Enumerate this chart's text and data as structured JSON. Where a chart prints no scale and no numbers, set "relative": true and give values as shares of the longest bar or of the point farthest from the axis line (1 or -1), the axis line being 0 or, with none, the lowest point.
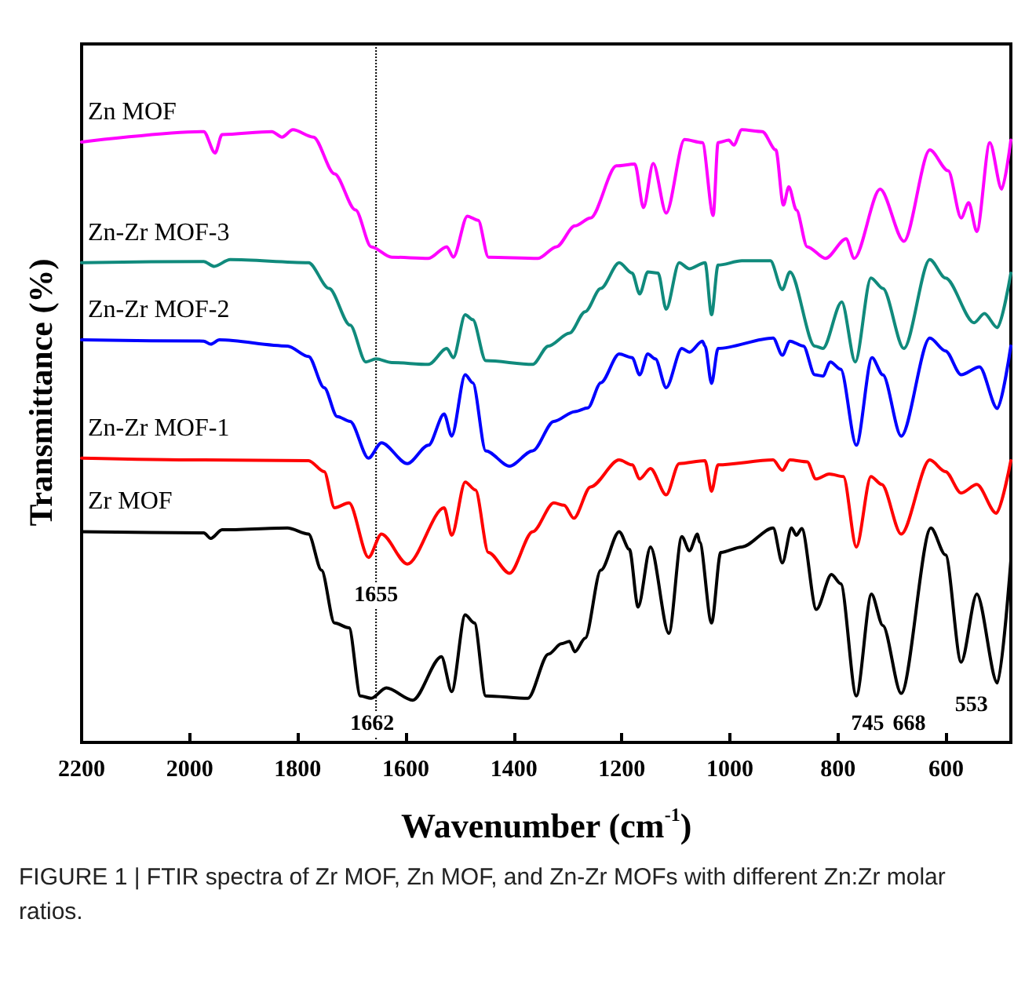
{
  "chart_data": {
    "type": "line",
    "xlabel": "Wavenumber (cm$^{-1}$)",
    "ylabel": "Transmittance (%)",
    "relative": true,
    "xlim": [
      2200,
      480
    ],
    "xticks": [
      2200,
      2000,
      1800,
      1600,
      1400,
      1200,
      1000,
      800,
      600
    ],
    "legend": false,
    "grid": false,
    "marker": "none",
    "line_style": "solid",
    "ref_lines": [
      {
        "axis": "x",
        "value": 1655,
        "line_style": "dotted",
        "color": "#000000"
      }
    ],
    "annotations": [
      {
        "text": "1655",
        "x": 1655,
        "y": 0.24
      },
      {
        "text": "1662",
        "x": 1662,
        "y": 0.03
      },
      {
        "text": "745",
        "x": 745,
        "y": 0.03
      },
      {
        "text": "668",
        "x": 668,
        "y": 0.03
      },
      {
        "text": "553",
        "x": 553,
        "y": 0.06
      },
      "FIGURE 1 | FTIR spectra of Zr MOF, Zn MOF, and Zn-Zr MOFs with different Zn:Zr molar ratios."
    ],
    "series": [
      {
        "name": "Zn MOF",
        "color": "#ff00ff",
        "x": [
          2200,
          1974,
          1953,
          1940,
          1848,
          1829,
          1809,
          1771,
          1732,
          1693,
          1664,
          1626,
          1558,
          1524,
          1512,
          1486,
          1466,
          1447,
          1355,
          1321,
          1287,
          1258,
          1210,
          1176,
          1160,
          1142,
          1118,
          1084,
          1051,
          1031,
          1022,
          1002,
          993,
          978,
          940,
          915,
          901,
          891,
          877,
          857,
          823,
          785,
          770,
          722,
          678,
          630,
          596,
          572,
          558,
          543,
          519,
          497,
          480
        ],
        "values": [
          0.98,
          0.997,
          0.962,
          0.992,
          0.997,
          0.988,
          1,
          0.988,
          0.928,
          0.869,
          0.809,
          0.792,
          0.79,
          0.809,
          0.792,
          0.859,
          0.852,
          0.792,
          0.79,
          0.809,
          0.843,
          0.856,
          0.941,
          0.944,
          0.873,
          0.945,
          0.864,
          0.984,
          0.979,
          0.86,
          0.979,
          0.983,
          0.975,
          1,
          0.997,
          0.967,
          0.877,
          0.907,
          0.869,
          0.809,
          0.79,
          0.822,
          0.79,
          0.903,
          0.818,
          0.967,
          0.933,
          0.856,
          0.881,
          0.834,
          0.979,
          0.903,
          0.983
        ]
      },
      {
        "name": "Zn-Zr MOF-3",
        "color": "#108a7c",
        "x": [
          2200,
          1974,
          1955,
          1925,
          1780,
          1742,
          1703,
          1674,
          1655,
          1626,
          1558,
          1524,
          1512,
          1490,
          1476,
          1452,
          1365,
          1336,
          1297,
          1268,
          1239,
          1205,
          1181,
          1167,
          1152,
          1133,
          1118,
          1094,
          1075,
          1046,
          1034,
          1022,
          978,
          925,
          903,
          889,
          843,
          828,
          793,
          768,
          739,
          717,
          678,
          630,
          601,
          548,
          529,
          505,
          480
        ],
        "values": [
          0.783,
          0.785,
          0.777,
          0.788,
          0.783,
          0.741,
          0.681,
          0.621,
          0.626,
          0.62,
          0.617,
          0.643,
          0.628,
          0.698,
          0.69,
          0.623,
          0.617,
          0.647,
          0.668,
          0.703,
          0.741,
          0.783,
          0.766,
          0.732,
          0.768,
          0.766,
          0.707,
          0.783,
          0.773,
          0.783,
          0.698,
          0.779,
          0.786,
          0.786,
          0.739,
          0.768,
          0.647,
          0.643,
          0.719,
          0.621,
          0.758,
          0.741,
          0.643,
          0.788,
          0.758,
          0.685,
          0.7,
          0.677,
          0.766
        ]
      },
      {
        "name": "Zn-Zr MOF-2",
        "color": "#0000ff",
        "x": [
          2200,
          1974,
          1961,
          1945,
          1819,
          1780,
          1751,
          1727,
          1703,
          1669,
          1645,
          1597,
          1558,
          1529,
          1515,
          1490,
          1476,
          1452,
          1408,
          1365,
          1326,
          1287,
          1263,
          1239,
          1205,
          1181,
          1167,
          1152,
          1138,
          1118,
          1089,
          1075,
          1051,
          1046,
          1034,
          1022,
          920,
          903,
          889,
          864,
          843,
          828,
          814,
          795,
          766,
          737,
          717,
          683,
          630,
          601,
          572,
          538,
          505,
          480
        ],
        "values": [
          0.657,
          0.655,
          0.65,
          0.657,
          0.647,
          0.63,
          0.579,
          0.532,
          0.524,
          0.464,
          0.489,
          0.455,
          0.485,
          0.536,
          0.5,
          0.6,
          0.587,
          0.476,
          0.451,
          0.476,
          0.524,
          0.54,
          0.546,
          0.587,
          0.634,
          0.628,
          0.6,
          0.634,
          0.626,
          0.579,
          0.643,
          0.637,
          0.655,
          0.647,
          0.586,
          0.643,
          0.66,
          0.632,
          0.655,
          0.647,
          0.6,
          0.598,
          0.621,
          0.609,
          0.485,
          0.628,
          0.6,
          0.5,
          0.66,
          0.639,
          0.6,
          0.613,
          0.545,
          0.647
        ]
      },
      {
        "name": "Zn-Zr MOF-1",
        "color": "#ff0000",
        "x": [
          2200,
          1974,
          1780,
          1751,
          1732,
          1705,
          1669,
          1645,
          1597,
          1529,
          1515,
          1490,
          1471,
          1447,
          1408,
          1365,
          1326,
          1307,
          1289,
          1258,
          1205,
          1181,
          1167,
          1147,
          1118,
          1094,
          1046,
          1034,
          1022,
          920,
          903,
          889,
          857,
          841,
          816,
          790,
          766,
          739,
          719,
          683,
          630,
          601,
          572,
          543,
          507,
          480
        ],
        "values": [
          0.464,
          0.461,
          0.46,
          0.442,
          0.383,
          0.391,
          0.302,
          0.34,
          0.291,
          0.383,
          0.338,
          0.425,
          0.412,
          0.31,
          0.276,
          0.344,
          0.391,
          0.387,
          0.366,
          0.417,
          0.461,
          0.453,
          0.43,
          0.447,
          0.404,
          0.455,
          0.46,
          0.41,
          0.453,
          0.461,
          0.444,
          0.461,
          0.458,
          0.43,
          0.438,
          0.434,
          0.319,
          0.434,
          0.421,
          0.34,
          0.461,
          0.442,
          0.407,
          0.421,
          0.374,
          0.46
        ]
      },
      {
        "name": "Zr MOF",
        "color": "#000000",
        "x": [
          2200,
          1974,
          1961,
          1940,
          1819,
          1780,
          1756,
          1732,
          1705,
          1684,
          1664,
          1636,
          1587,
          1534,
          1515,
          1490,
          1473,
          1452,
          1374,
          1336,
          1312,
          1297,
          1287,
          1268,
          1239,
          1205,
          1186,
          1170,
          1147,
          1113,
          1089,
          1075,
          1060,
          1056,
          1034,
          1017,
          978,
          920,
          903,
          886,
          877,
          867,
          840,
          812,
          795,
          766,
          738,
          717,
          683,
          628,
          601,
          572,
          543,
          505,
          480
        ],
        "values": [
          0.344,
          0.342,
          0.333,
          0.347,
          0.35,
          0.34,
          0.281,
          0.195,
          0.187,
          0.076,
          0.072,
          0.089,
          0.069,
          0.14,
          0.083,
          0.208,
          0.195,
          0.076,
          0.072,
          0.144,
          0.161,
          0.165,
          0.148,
          0.17,
          0.281,
          0.344,
          0.315,
          0.221,
          0.319,
          0.178,
          0.336,
          0.313,
          0.34,
          0.327,
          0.195,
          0.31,
          0.319,
          0.35,
          0.293,
          0.35,
          0.338,
          0.349,
          0.217,
          0.274,
          0.259,
          0.076,
          0.242,
          0.191,
          0.08,
          0.35,
          0.306,
          0.131,
          0.242,
          0.097,
          0.297
        ]
      }
    ]
  }
}
